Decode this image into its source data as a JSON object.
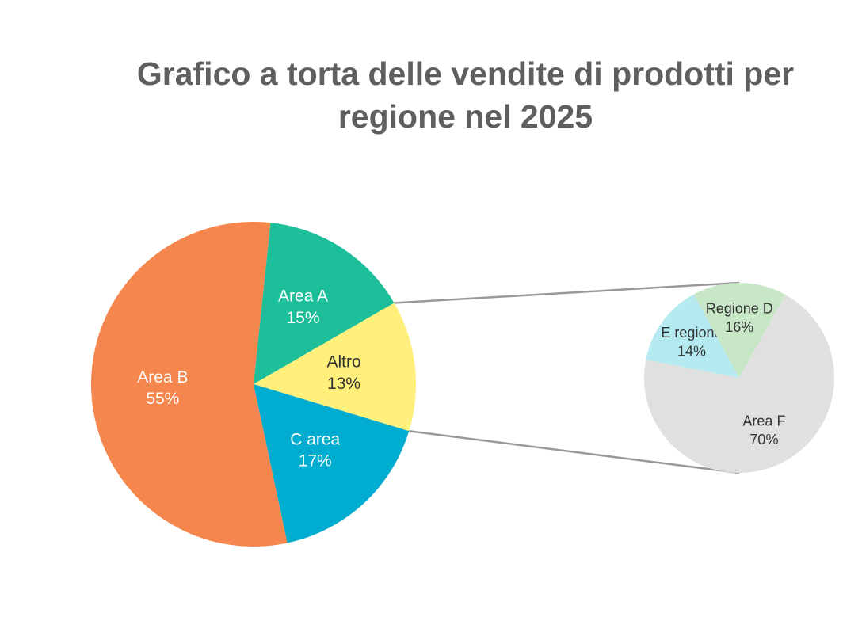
{
  "chart_data": {
    "type": "pie_of_pie",
    "title": "Grafico a torta delle vendite di prodotti per regione nel 2025",
    "pies": [
      {
        "categories": [
          "Area A",
          "Altro",
          "C area",
          "Area B"
        ],
        "values": [
          15,
          13,
          17,
          55
        ],
        "value_labels": [
          "15%",
          "13%",
          "17%",
          "55%"
        ],
        "colors": [
          "#1dbf9a",
          "#fef07a",
          "#00accf",
          "#f5864e"
        ]
      },
      {
        "categories": [
          "Area F",
          "E regione",
          "Regione D"
        ],
        "values": [
          70,
          14,
          16
        ],
        "value_labels": [
          "70%",
          "14%",
          "16%"
        ],
        "colors": [
          "#e0e0e0",
          "#b4eaf0",
          "#c6e6c6"
        ]
      }
    ]
  }
}
